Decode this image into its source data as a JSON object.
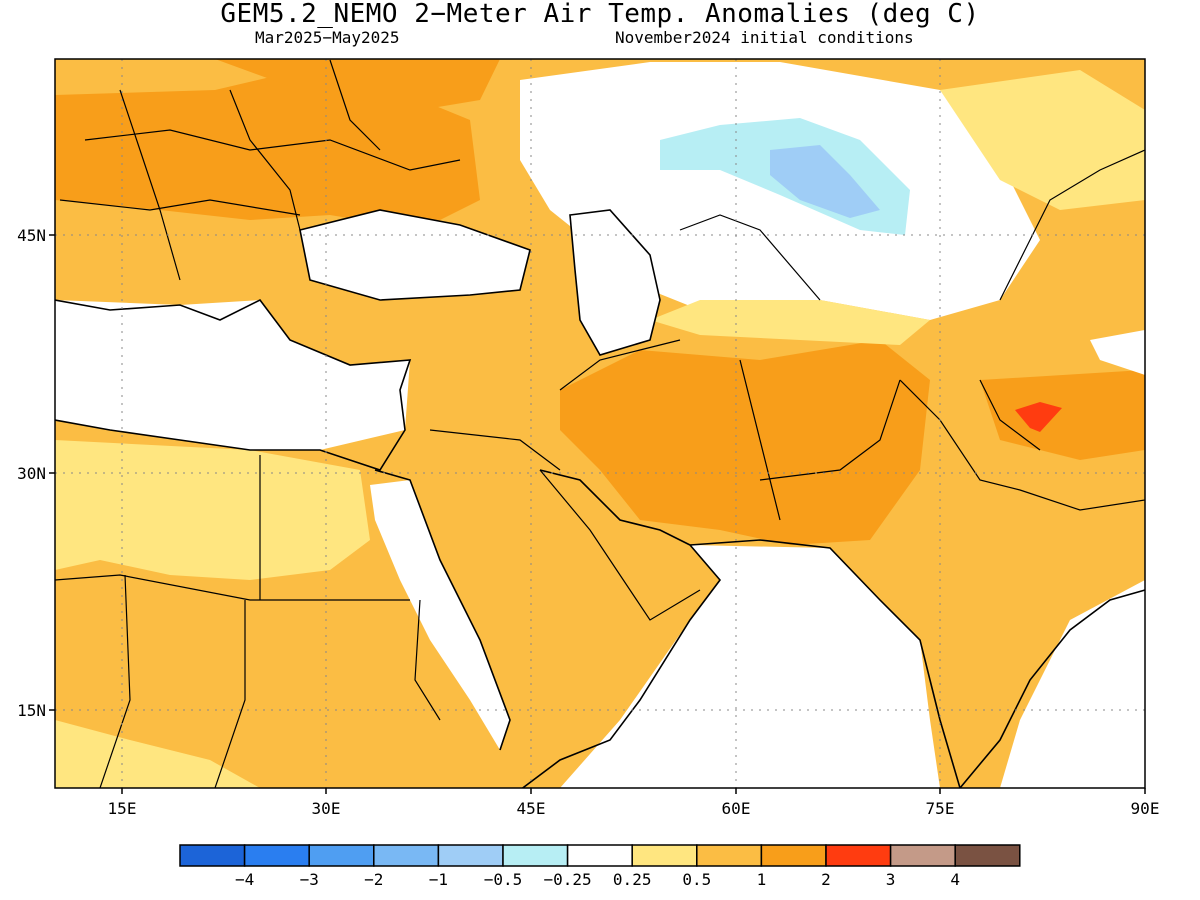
{
  "title": "GEM5.2_NEMO 2−Meter Air Temp. Anomalies (deg C)",
  "subtitle_left": "Mar2025−May2025",
  "subtitle_right": "November2024 initial conditions",
  "axes": {
    "x_ticks": [
      "15E",
      "30E",
      "45E",
      "60E",
      "75E",
      "90E"
    ],
    "y_ticks": [
      "45N",
      "30N",
      "15N"
    ]
  },
  "legend": {
    "colors": [
      "#1c64d8",
      "#2a7ef0",
      "#4f9ef2",
      "#79b8f4",
      "#9fcdf6",
      "#b7eef4",
      "#ffffff",
      "#ffe680",
      "#fbbd44",
      "#f89e1a",
      "#ff3c10",
      "#c49a88",
      "#7a5242"
    ],
    "labels": [
      "−4",
      "−3",
      "−2",
      "−1",
      "−0.5",
      "−0.25",
      "0.25",
      "0.5",
      "1",
      "2",
      "3",
      "4"
    ]
  },
  "palette": {
    "light_yellow": "#ffe680",
    "light_orange": "#fbbd44",
    "orange": "#f89e1a",
    "red": "#ff3c10",
    "light_blue": "#b7eef4",
    "mid_blue": "#9fcdf6"
  }
}
